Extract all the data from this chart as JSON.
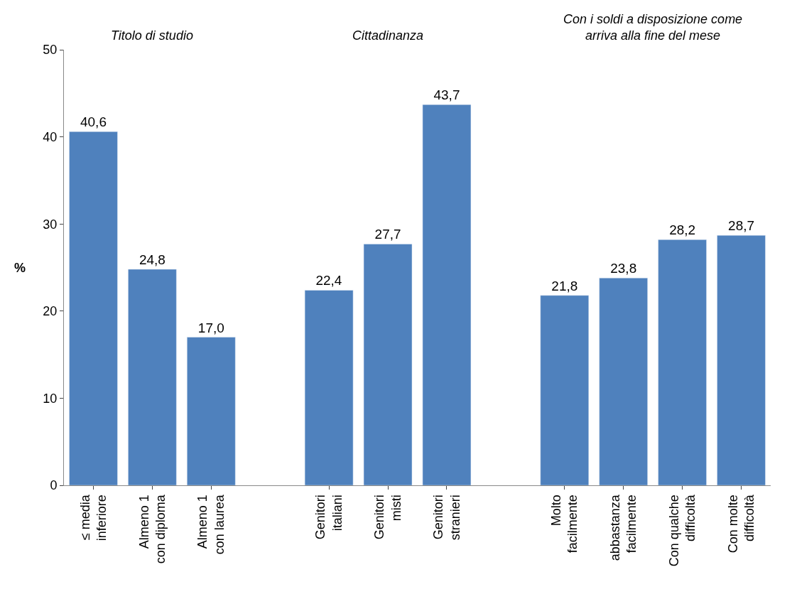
{
  "chart_data": {
    "type": "bar",
    "ylabel": "%",
    "annotations": [
      "Titolo di studio",
      "Cittadinanza",
      "Con i soldi a disposizione come\narriva alla fine del mese"
    ],
    "categories": [
      "≤ media\ninferiore",
      "Almeno 1\ncon diploma",
      "Almeno 1\ncon laurea",
      null,
      "Genitori\nitaliani",
      "Genitori\nmisti",
      "Genitori\nstranieri",
      null,
      "Molto\nfacilmente",
      "abbastanza\nfacilmente",
      "Con qualche\ndifficoltà",
      "Con molte\ndifficoltà"
    ],
    "values": [
      40.6,
      24.8,
      17.0,
      null,
      22.4,
      27.7,
      43.7,
      null,
      21.8,
      23.8,
      28.2,
      28.7
    ],
    "value_labels": [
      "40,6",
      "24,8",
      "17,0",
      null,
      "22,4",
      "27,7",
      "43,7",
      null,
      "21,8",
      "23,8",
      "28,2",
      "28,7"
    ],
    "color": "#4f81bd",
    "ylim": [
      0,
      50
    ],
    "yticks": [
      0,
      10,
      20,
      30,
      40,
      50
    ]
  }
}
